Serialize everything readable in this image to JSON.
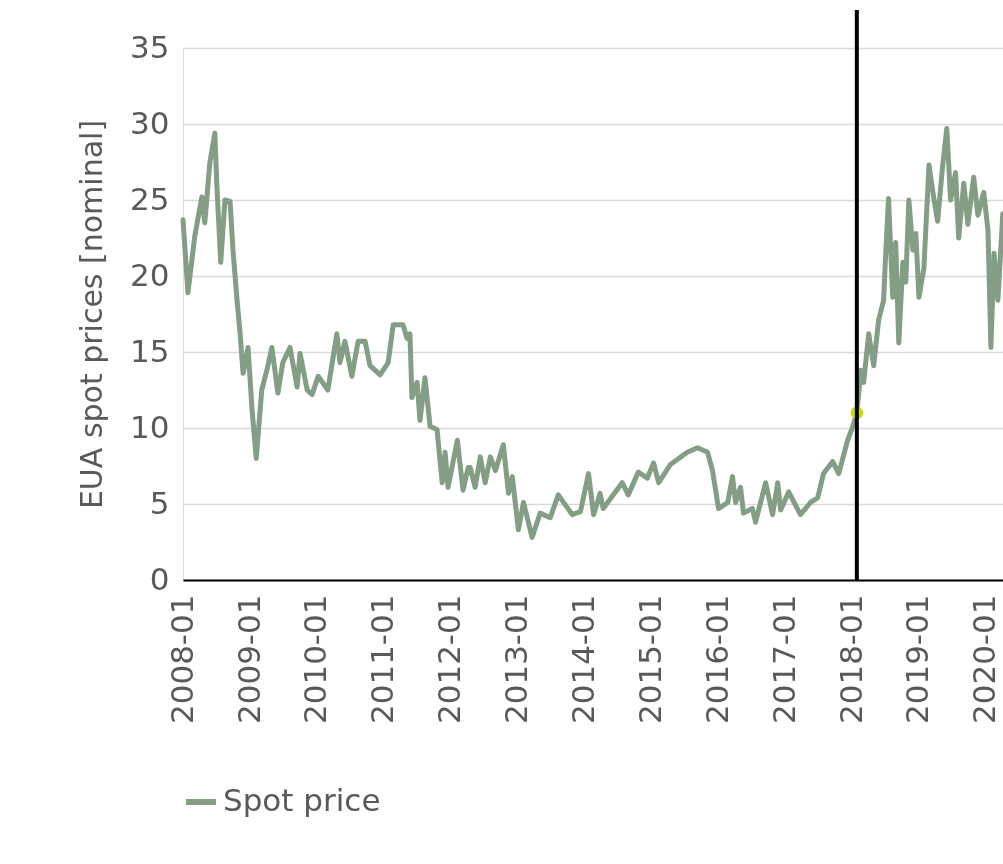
{
  "chart_data": {
    "type": "line",
    "ylabel": "EUA spot prices [nominal]",
    "xlim": [
      "2008-01-01",
      "2020-04-04"
    ],
    "xticks": [
      "2008-01",
      "2009-01",
      "2010-01",
      "2011-01",
      "2012-01",
      "2013-01",
      "2014-01",
      "2015-01",
      "2016-01",
      "2017-01",
      "2018-01",
      "2019-01",
      "2020-01"
    ],
    "ylim": [
      0,
      35
    ],
    "yticks": [
      0,
      5,
      10,
      15,
      20,
      25,
      30,
      35
    ],
    "grid": "y",
    "legend": "bottom",
    "series": [
      {
        "name": "Spot price",
        "color": "#849d85",
        "x": [
          "2008-01-01",
          "2008-01-28",
          "2008-03-05",
          "2008-04-13",
          "2008-04-29",
          "2008-05-26",
          "2008-06-23",
          "2008-07-04",
          "2008-07-25",
          "2008-08-17",
          "2008-09-14",
          "2008-09-30",
          "2008-10-22",
          "2008-11-08",
          "2008-11-24",
          "2008-12-21",
          "2009-01-12",
          "2009-02-04",
          "2009-03-06",
          "2009-04-03",
          "2009-04-30",
          "2009-06-02",
          "2009-06-29",
          "2009-08-07",
          "2009-09-15",
          "2009-10-01",
          "2009-11-09",
          "2009-12-06",
          "2010-01-08",
          "2010-03-02",
          "2010-04-20",
          "2010-05-07",
          "2010-06-03",
          "2010-07-11",
          "2010-08-14",
          "2010-09-21",
          "2010-10-18",
          "2010-12-12",
          "2011-01-25",
          "2011-02-22",
          "2011-04-16",
          "2011-05-08",
          "2011-05-24",
          "2011-06-04",
          "2011-07-02",
          "2011-07-18",
          "2011-08-14",
          "2011-09-11",
          "2011-10-19",
          "2011-11-16",
          "2011-12-02",
          "2011-12-18",
          "2012-02-07",
          "2012-03-09",
          "2012-04-06",
          "2012-04-17",
          "2012-05-14",
          "2012-06-11",
          "2012-07-08",
          "2012-08-05",
          "2012-09-02",
          "2012-10-15",
          "2012-11-12",
          "2012-12-03",
          "2013-01-05",
          "2013-02-02",
          "2013-03-21",
          "2013-05-04",
          "2013-06-28",
          "2013-08-11",
          "2013-10-26",
          "2013-12-10",
          "2014-01-23",
          "2014-02-20",
          "2014-03-27",
          "2014-04-13",
          "2014-07-26",
          "2014-08-28",
          "2014-10-22",
          "2014-12-10",
          "2015-01-13",
          "2015-02-10",
          "2015-04-15",
          "2015-07-16",
          "2015-09-10",
          "2015-11-04",
          "2015-12-01",
          "2016-01-03",
          "2016-02-22",
          "2016-03-19",
          "2016-04-05",
          "2016-05-02",
          "2016-05-18",
          "2016-07-06",
          "2016-07-23",
          "2016-09-16",
          "2016-10-24",
          "2016-11-21",
          "2016-12-07",
          "2017-01-20",
          "2017-03-25",
          "2017-05-19",
          "2017-06-27",
          "2017-07-29",
          "2017-09-17",
          "2017-10-20",
          "2017-12-08",
          "2018-01-05",
          "2018-01-27",
          "2018-02-18",
          "2018-03-05",
          "2018-04-02",
          "2018-04-29",
          "2018-05-26",
          "2018-06-22",
          "2018-07-03",
          "2018-07-19",
          "2018-08-11",
          "2018-08-27",
          "2018-09-13",
          "2018-10-05",
          "2018-10-21",
          "2018-11-07",
          "2018-11-29",
          "2018-12-15",
          "2019-01-01",
          "2019-01-28",
          "2019-02-25",
          "2019-03-22",
          "2019-04-13",
          "2019-05-10",
          "2019-06-02",
          "2019-06-23",
          "2019-07-20",
          "2019-08-06",
          "2019-09-03",
          "2019-09-25",
          "2019-10-27",
          "2019-11-19",
          "2019-12-21",
          "2020-01-13",
          "2020-01-29",
          "2020-02-15",
          "2020-03-07",
          "2020-04-03"
        ],
        "values": [
          23.7,
          18.9,
          22.6,
          25.2,
          23.5,
          27.4,
          29.4,
          25.9,
          20.9,
          25.0,
          24.9,
          21.7,
          18.4,
          16.2,
          13.6,
          15.3,
          11.2,
          8.0,
          12.5,
          13.8,
          15.3,
          12.3,
          14.3,
          15.3,
          12.7,
          14.9,
          12.5,
          12.2,
          13.4,
          12.5,
          16.2,
          14.3,
          15.7,
          13.4,
          15.7,
          15.7,
          14.1,
          13.5,
          14.3,
          16.8,
          16.8,
          15.9,
          16.2,
          12.0,
          13.0,
          10.5,
          13.3,
          10.1,
          9.9,
          6.4,
          8.4,
          6.1,
          9.2,
          5.9,
          7.4,
          7.4,
          6.1,
          8.1,
          6.4,
          8.1,
          7.2,
          8.9,
          5.7,
          6.8,
          3.3,
          5.1,
          2.8,
          4.4,
          4.1,
          5.6,
          4.3,
          4.5,
          7.0,
          4.3,
          5.7,
          4.7,
          6.4,
          5.6,
          7.1,
          6.7,
          7.7,
          6.4,
          7.6,
          8.4,
          8.7,
          8.4,
          7.2,
          4.7,
          5.1,
          6.8,
          5.1,
          6.1,
          4.4,
          4.7,
          3.8,
          6.4,
          4.3,
          6.4,
          4.6,
          5.8,
          4.3,
          5.1,
          5.4,
          7.0,
          7.8,
          7.0,
          9.2,
          10.1,
          11.0,
          13.8,
          13.0,
          16.2,
          14.1,
          17.1,
          18.4,
          21.3,
          25.1,
          18.6,
          22.2,
          15.6,
          20.9,
          19.6,
          25.0,
          21.7,
          22.8,
          18.6,
          20.5,
          27.3,
          25.2,
          23.6,
          27.2,
          29.7,
          25.0,
          26.8,
          22.5,
          26.1,
          23.4,
          26.5,
          24.0,
          25.5,
          23.0,
          15.3,
          21.5,
          18.4,
          24.1
        ]
      },
      {
        "type": "scatter",
        "marker": "circle",
        "color": "#c8dc00",
        "x": [
          "2018-01-27"
        ],
        "values": [
          11.0
        ]
      }
    ],
    "ref_lines": [
      {
        "axis": "x",
        "value": "2018-01-27",
        "color": "#000000"
      }
    ]
  }
}
